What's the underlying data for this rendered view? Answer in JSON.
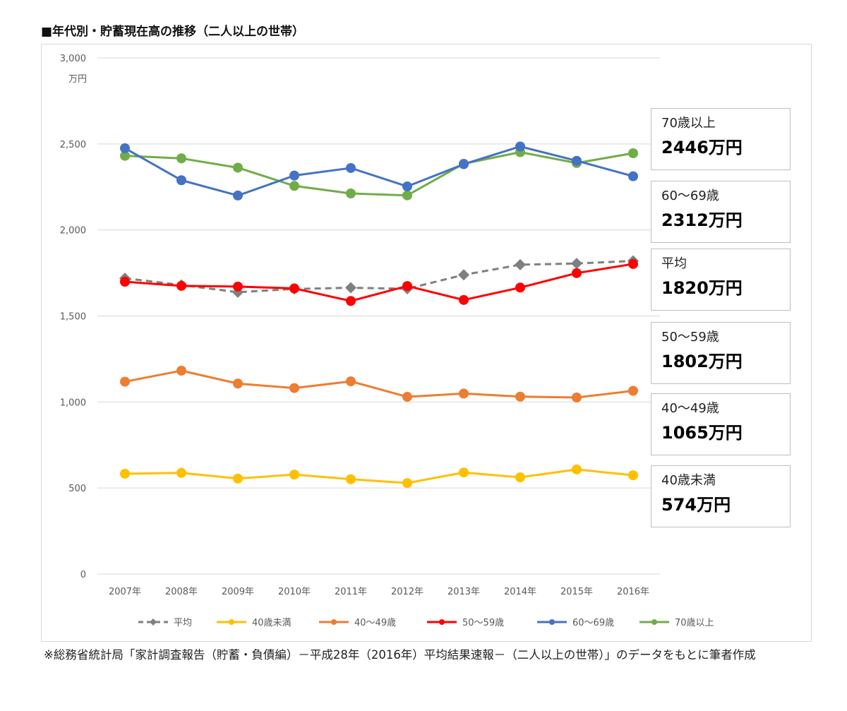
{
  "title": "■年代別・貯蓄現在高の推移（二人以上の世帯）",
  "source_note": "※総務省統計局「家計調査報告（貯蓄・負債編）－平成28年（2016年）平均結果速報－（二人以上の世帯）」のデータをもとに筆者作成",
  "chart_data": {
    "type": "line",
    "title": "年代別・貯蓄現在高の推移（二人以上の世帯）",
    "unit_label": "万円",
    "categories": [
      "2007年",
      "2008年",
      "2009年",
      "2010年",
      "2011年",
      "2012年",
      "2013年",
      "2014年",
      "2015年",
      "2016年"
    ],
    "y_ticks": [
      "3,000",
      "2,500",
      "2,000",
      "1,500",
      "1,000",
      "500",
      "0"
    ],
    "ylim": [
      0,
      3000
    ],
    "grid": true,
    "legend_position": "bottom",
    "series": [
      {
        "name": "平均",
        "color": "#7f7f7f",
        "dashed": true,
        "marker": "diamond",
        "values": [
          1719,
          1680,
          1638,
          1657,
          1664,
          1658,
          1739,
          1798,
          1805,
          1820
        ]
      },
      {
        "name": "40歳未満",
        "color": "#ffc000",
        "dashed": false,
        "marker": "circle",
        "values": [
          583,
          588,
          555,
          578,
          551,
          529,
          590,
          562,
          608,
          574
        ]
      },
      {
        "name": "40～49歳",
        "color": "#ed7d31",
        "dashed": false,
        "marker": "circle",
        "values": [
          1118,
          1182,
          1107,
          1081,
          1120,
          1030,
          1049,
          1031,
          1026,
          1065
        ]
      },
      {
        "name": "50～59歳",
        "color": "#ff0000",
        "dashed": false,
        "marker": "circle",
        "values": [
          1699,
          1675,
          1671,
          1660,
          1587,
          1674,
          1593,
          1665,
          1749,
          1802
        ]
      },
      {
        "name": "60～69歳",
        "color": "#4472c4",
        "dashed": false,
        "marker": "circle",
        "values": [
          2475,
          2289,
          2200,
          2316,
          2360,
          2253,
          2382,
          2485,
          2402,
          2312
        ]
      },
      {
        "name": "70歳以上",
        "color": "#70ad47",
        "dashed": false,
        "marker": "circle",
        "values": [
          2431,
          2416,
          2362,
          2256,
          2212,
          2201,
          2385,
          2452,
          2389,
          2446
        ]
      }
    ]
  },
  "callouts": [
    {
      "label": "70歳以上",
      "value": "2446万円"
    },
    {
      "label": "60～69歳",
      "value": "2312万円"
    },
    {
      "label": "平均",
      "value": "1820万円"
    },
    {
      "label": "50～59歳",
      "value": "1802万円"
    },
    {
      "label": "40～49歳",
      "value": "1065万円"
    },
    {
      "label": "40歳未満",
      "value": "574万円"
    }
  ]
}
